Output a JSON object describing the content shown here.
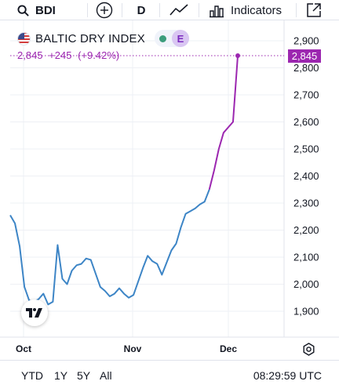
{
  "toolbar": {
    "symbol": "BDI",
    "interval": "D",
    "indicators_label": "Indicators",
    "icons": [
      "search-icon",
      "add-circle-icon",
      "line-chart-type-icon",
      "indicators-icon",
      "share-icon"
    ]
  },
  "legend": {
    "name": "BALTIC DRY INDEX",
    "flag": "us-flag-icon",
    "status_color": "#3c9d7c",
    "exchange_badge": "E",
    "last_price": "2,845",
    "change": "+245",
    "change_pct": "(+9.42%)"
  },
  "colors": {
    "line": "#3d85c6",
    "highlight": "#9c27b0",
    "grid": "#eef0f5"
  },
  "chart_data": {
    "type": "line",
    "title": "",
    "xlabel": "",
    "ylabel": "",
    "x_ticks": [
      "Oct",
      "Nov",
      "Dec"
    ],
    "y_ticks": [
      1900,
      2000,
      2100,
      2200,
      2300,
      2400,
      2500,
      2600,
      2700,
      2800,
      2900
    ],
    "ylim": [
      1870,
      2935
    ],
    "grid": true,
    "last_value_tag": "2,845",
    "series": [
      {
        "values": [
          2255,
          2225,
          2140,
          1990,
          1940,
          1935,
          1945,
          1965,
          1925,
          1935,
          2145,
          2020,
          2000,
          2050,
          2070,
          2075,
          2095,
          2090,
          2040,
          1990,
          1975,
          1955,
          1965,
          1985,
          1965,
          1950,
          1960,
          2010,
          2060,
          2105,
          2085,
          2075,
          2035,
          2080,
          2125,
          2150,
          2210,
          2260,
          2270,
          2280,
          2295,
          2305,
          2350,
          2420,
          2500,
          2560,
          2580,
          2600,
          2845
        ]
      }
    ]
  },
  "bottom": {
    "ranges": [
      "YTD",
      "1Y",
      "5Y",
      "All"
    ],
    "clock": "08:29:59 UTC"
  }
}
